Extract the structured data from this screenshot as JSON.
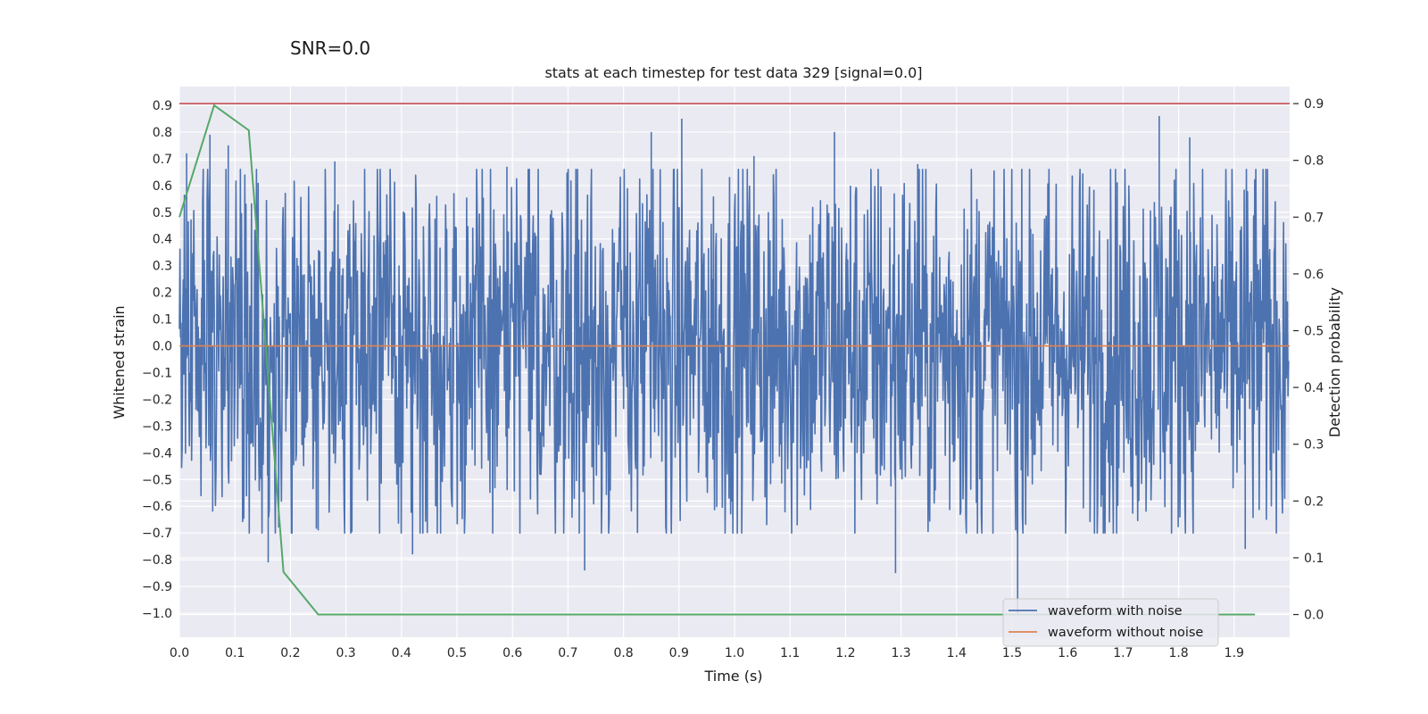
{
  "chart_data": {
    "type": "line",
    "figure_label": "SNR=0.0",
    "title": "stats at each timestep for test data 329 [signal=0.0]",
    "xlabel": "Time (s)",
    "ylabel": "Whitened strain",
    "y2label": "Detection probability",
    "xlim": [
      0,
      2.0
    ],
    "ylim": [
      -1.09,
      0.97
    ],
    "y2lim": [
      -0.04,
      0.93
    ],
    "xticks": [
      0.0,
      0.1,
      0.2,
      0.3,
      0.4,
      0.5,
      0.6,
      0.7,
      0.8,
      0.9,
      1.0,
      1.1,
      1.2,
      1.3,
      1.4,
      1.5,
      1.6,
      1.7,
      1.8,
      1.9
    ],
    "yticks": [
      0.9,
      0.8,
      0.7,
      0.6,
      0.5,
      0.4,
      0.3,
      0.2,
      0.1,
      0.0,
      -0.1,
      -0.2,
      -0.3,
      -0.4,
      -0.5,
      -0.6,
      -0.7,
      -0.8,
      -0.9,
      -1.0
    ],
    "y2ticks": [
      0.9,
      0.8,
      0.7,
      0.6,
      0.5,
      0.4,
      0.3,
      0.2,
      0.1,
      0.0
    ],
    "threshold": 0.9,
    "legend": {
      "position": "lower right",
      "entries": [
        "waveform with noise",
        "waveform without noise"
      ]
    },
    "colors": {
      "noise": "#4c72b0",
      "clean": "#dd8452",
      "prob": "#55a868",
      "threshold": "#c44e52",
      "background": "#eaeaf2",
      "grid": "#ffffff"
    },
    "series": [
      {
        "name": "waveform with noise",
        "axis": "left",
        "note": "dense whitened-noise trace, ~0.0 mean, range approx -1.0 to 0.86",
        "peaks": [
          {
            "x": 0.013,
            "y": 0.72
          },
          {
            "x": 0.055,
            "y": 0.79
          },
          {
            "x": 0.06,
            "y": -0.62
          },
          {
            "x": 0.088,
            "y": 0.75
          },
          {
            "x": 0.16,
            "y": -0.81
          },
          {
            "x": 0.25,
            "y": -0.69
          },
          {
            "x": 0.28,
            "y": 0.69
          },
          {
            "x": 0.42,
            "y": -0.78
          },
          {
            "x": 0.59,
            "y": 0.67
          },
          {
            "x": 0.73,
            "y": -0.84
          },
          {
            "x": 0.85,
            "y": 0.8
          },
          {
            "x": 0.905,
            "y": 0.85
          },
          {
            "x": 1.035,
            "y": 0.71
          },
          {
            "x": 1.18,
            "y": 0.8
          },
          {
            "x": 1.29,
            "y": -0.85
          },
          {
            "x": 1.33,
            "y": 0.68
          },
          {
            "x": 1.51,
            "y": -1.0
          },
          {
            "x": 1.765,
            "y": 0.86
          },
          {
            "x": 1.82,
            "y": 0.78
          },
          {
            "x": 1.92,
            "y": -0.76
          }
        ]
      },
      {
        "name": "waveform without noise",
        "axis": "left",
        "x": [
          0.0,
          2.0
        ],
        "y": [
          0.0,
          0.0
        ]
      },
      {
        "name": "detection probability",
        "axis": "right",
        "x": [
          0.0,
          0.0625,
          0.125,
          0.1875,
          0.25,
          0.3125,
          0.375,
          0.4375,
          0.5,
          0.5625,
          0.625,
          0.6875,
          0.75,
          0.8125,
          0.875,
          0.9375,
          1.0,
          1.0625,
          1.125,
          1.1875,
          1.25,
          1.3125,
          1.375,
          1.4375,
          1.5,
          1.5625,
          1.625,
          1.6875,
          1.75,
          1.8125,
          1.875,
          1.9375
        ],
        "y": [
          0.7,
          0.897,
          0.853,
          0.075,
          0.0,
          0,
          0,
          0,
          0,
          0,
          0,
          0,
          0,
          0,
          0,
          0,
          0,
          0,
          0,
          0,
          0,
          0,
          0,
          0,
          0,
          0,
          0,
          0,
          0,
          0,
          0,
          0.0
        ]
      }
    ]
  }
}
